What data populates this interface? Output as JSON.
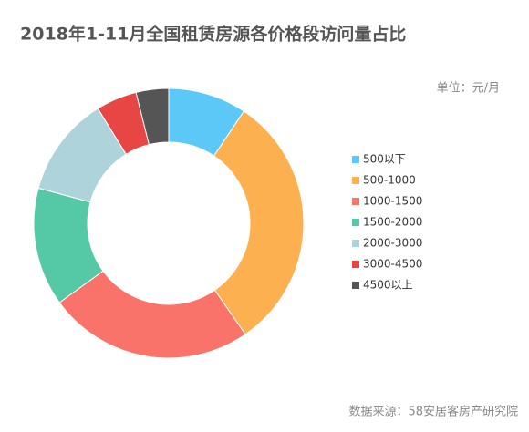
{
  "chart_data": {
    "type": "donut",
    "title": "2018年1-11月全国租赁房源各价格段访问量占比",
    "subtitle": "单位：元/月",
    "source": "数据来源：58安居客房产研究院",
    "categories": [
      "500以下",
      "500-1000",
      "1000-1500",
      "1500-2000",
      "2000-3000",
      "3000-4500",
      "4500以上"
    ],
    "values": [
      9.4,
      31,
      24.6,
      14.2,
      12,
      4.9,
      3.9
    ],
    "colors": [
      "#5bc8f8",
      "#fdb04f",
      "#f9736a",
      "#55c9a6",
      "#afd3db",
      "#e84545",
      "#555555"
    ],
    "legend": "right"
  }
}
